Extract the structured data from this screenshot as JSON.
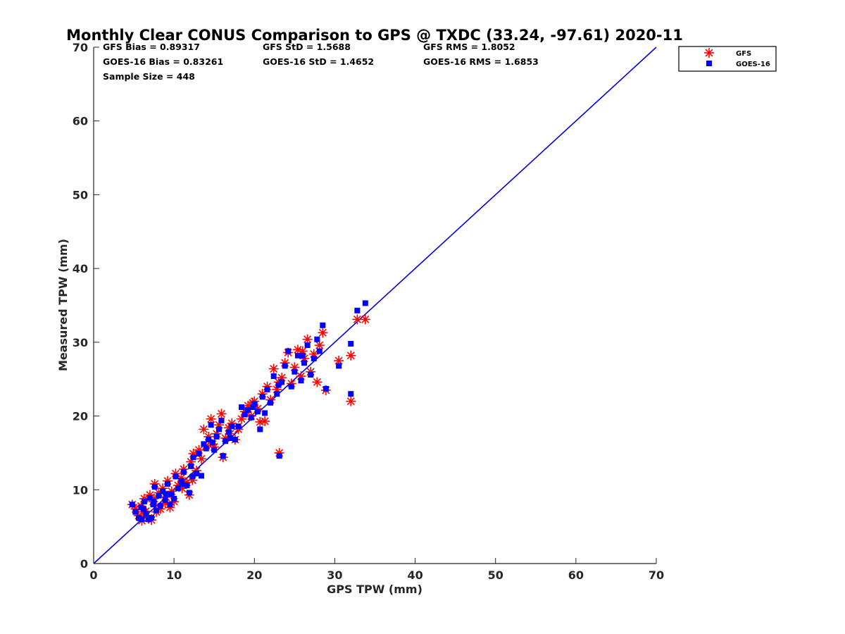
{
  "chart_data": {
    "type": "scatter",
    "title": "Monthly Clear CONUS Comparison to GPS @ TXDC (33.24, -97.61) 2020-11",
    "xlabel": "GPS TPW (mm)",
    "ylabel": "Measured TPW (mm)",
    "xlim": [
      0,
      70
    ],
    "ylim": [
      0,
      70
    ],
    "xticks": [
      0,
      10,
      20,
      30,
      40,
      50,
      60,
      70
    ],
    "yticks": [
      0,
      10,
      20,
      30,
      40,
      50,
      60,
      70
    ],
    "grid": false,
    "legend_position": "top-right-outside",
    "stats": {
      "gfs_bias": "GFS Bias = 0.89317",
      "gfs_std": "GFS StD = 1.5688",
      "gfs_rms": "GFS RMS = 1.8052",
      "goes_bias": "GOES-16 Bias = 0.83261",
      "goes_std": "GOES-16 StD = 1.4652",
      "goes_rms": "GOES-16 RMS = 1.6853",
      "sample_size": "Sample Size = 448"
    },
    "reference_line": {
      "name": "1:1",
      "color": "#0000dd",
      "points": [
        [
          0,
          0
        ],
        [
          70,
          70
        ]
      ]
    },
    "series": [
      {
        "name": "GFS",
        "marker": "asterisk",
        "color": "#ff0000",
        "points": [
          [
            4.8,
            8.0
          ],
          [
            5.2,
            7.4
          ],
          [
            5.6,
            6.5
          ],
          [
            5.9,
            7.8
          ],
          [
            6.0,
            5.8
          ],
          [
            6.3,
            8.8
          ],
          [
            6.5,
            7.1
          ],
          [
            6.8,
            6.2
          ],
          [
            7.0,
            9.3
          ],
          [
            7.2,
            5.9
          ],
          [
            7.4,
            8.4
          ],
          [
            7.6,
            10.8
          ],
          [
            7.8,
            7.0
          ],
          [
            8.1,
            9.6
          ],
          [
            8.3,
            7.4
          ],
          [
            8.6,
            10.2
          ],
          [
            8.9,
            8.2
          ],
          [
            9.2,
            11.2
          ],
          [
            9.5,
            7.6
          ],
          [
            9.7,
            9.8
          ],
          [
            10.0,
            8.4
          ],
          [
            10.2,
            12.2
          ],
          [
            10.5,
            10.6
          ],
          [
            10.9,
            11.6
          ],
          [
            11.2,
            12.8
          ],
          [
            11.6,
            11.0
          ],
          [
            11.9,
            9.3
          ],
          [
            12.1,
            13.8
          ],
          [
            12.4,
            14.9
          ],
          [
            12.8,
            12.6
          ],
          [
            13.1,
            15.4
          ],
          [
            13.4,
            14.2
          ],
          [
            13.7,
            18.2
          ],
          [
            14.0,
            16.0
          ],
          [
            14.3,
            17.2
          ],
          [
            14.6,
            19.6
          ],
          [
            15.0,
            15.8
          ],
          [
            15.3,
            17.6
          ],
          [
            15.6,
            18.8
          ],
          [
            15.9,
            20.3
          ],
          [
            16.1,
            14.4
          ],
          [
            16.4,
            17.0
          ],
          [
            16.8,
            18.4
          ],
          [
            17.2,
            19.0
          ],
          [
            17.6,
            16.8
          ],
          [
            18.0,
            18.2
          ],
          [
            18.4,
            19.6
          ],
          [
            18.8,
            20.6
          ],
          [
            19.2,
            21.4
          ],
          [
            19.6,
            20.0
          ],
          [
            20.0,
            22.0
          ],
          [
            20.4,
            21.0
          ],
          [
            20.7,
            19.2
          ],
          [
            21.0,
            23.0
          ],
          [
            21.3,
            19.3
          ],
          [
            21.6,
            24.0
          ],
          [
            22.0,
            22.2
          ],
          [
            22.4,
            26.4
          ],
          [
            22.8,
            23.6
          ],
          [
            23.1,
            15.0
          ],
          [
            23.4,
            25.2
          ],
          [
            23.8,
            27.2
          ],
          [
            24.2,
            28.6
          ],
          [
            24.6,
            24.4
          ],
          [
            25.0,
            26.6
          ],
          [
            25.4,
            29.0
          ],
          [
            25.8,
            25.4
          ],
          [
            26.2,
            27.8
          ],
          [
            26.6,
            30.4
          ],
          [
            27.0,
            26.0
          ],
          [
            27.4,
            28.4
          ],
          [
            27.8,
            24.6
          ],
          [
            28.1,
            29.6
          ],
          [
            28.5,
            31.3
          ],
          [
            28.9,
            23.5
          ],
          [
            30.5,
            27.5
          ],
          [
            32.0,
            28.2
          ],
          [
            32.0,
            22.0
          ],
          [
            32.8,
            33.1
          ],
          [
            33.8,
            33.1
          ],
          [
            6.2,
            7.0
          ],
          [
            7.5,
            8.8
          ],
          [
            9.0,
            9.0
          ],
          [
            11.0,
            10.2
          ],
          [
            12.3,
            11.3
          ],
          [
            14.8,
            16.2
          ],
          [
            17.0,
            17.6
          ],
          [
            19.8,
            21.8
          ],
          [
            23.0,
            24.6
          ],
          [
            26.0,
            28.8
          ]
        ]
      },
      {
        "name": "GOES-16",
        "marker": "square",
        "color": "#0000ff",
        "points": [
          [
            4.8,
            8.0
          ],
          [
            5.2,
            7.0
          ],
          [
            5.6,
            6.2
          ],
          [
            5.9,
            7.6
          ],
          [
            6.0,
            6.0
          ],
          [
            6.3,
            8.4
          ],
          [
            6.5,
            6.8
          ],
          [
            6.8,
            6.0
          ],
          [
            7.0,
            8.9
          ],
          [
            7.2,
            6.2
          ],
          [
            7.4,
            8.0
          ],
          [
            7.6,
            10.4
          ],
          [
            7.8,
            7.2
          ],
          [
            8.1,
            9.2
          ],
          [
            8.3,
            7.8
          ],
          [
            8.6,
            9.8
          ],
          [
            8.9,
            8.6
          ],
          [
            9.2,
            10.8
          ],
          [
            9.5,
            8.0
          ],
          [
            9.7,
            9.4
          ],
          [
            10.0,
            8.8
          ],
          [
            10.2,
            11.8
          ],
          [
            10.5,
            10.2
          ],
          [
            10.9,
            11.2
          ],
          [
            11.2,
            12.4
          ],
          [
            11.6,
            10.6
          ],
          [
            11.9,
            9.6
          ],
          [
            12.1,
            13.2
          ],
          [
            12.4,
            14.4
          ],
          [
            12.8,
            12.2
          ],
          [
            13.1,
            14.9
          ],
          [
            13.4,
            11.9
          ],
          [
            13.7,
            16.2
          ],
          [
            14.0,
            15.6
          ],
          [
            14.3,
            16.8
          ],
          [
            14.6,
            18.8
          ],
          [
            15.0,
            15.4
          ],
          [
            15.3,
            17.2
          ],
          [
            15.6,
            18.2
          ],
          [
            15.9,
            19.4
          ],
          [
            16.1,
            14.6
          ],
          [
            16.4,
            16.6
          ],
          [
            16.8,
            17.8
          ],
          [
            17.2,
            18.6
          ],
          [
            17.6,
            16.8
          ],
          [
            18.0,
            18.6
          ],
          [
            18.4,
            21.2
          ],
          [
            18.8,
            20.2
          ],
          [
            19.2,
            20.8
          ],
          [
            19.6,
            19.8
          ],
          [
            20.0,
            21.6
          ],
          [
            20.4,
            20.6
          ],
          [
            20.7,
            18.2
          ],
          [
            21.0,
            22.6
          ],
          [
            21.3,
            20.4
          ],
          [
            21.6,
            23.6
          ],
          [
            22.0,
            21.8
          ],
          [
            22.4,
            25.4
          ],
          [
            22.8,
            23.0
          ],
          [
            23.1,
            14.6
          ],
          [
            23.4,
            24.6
          ],
          [
            23.8,
            26.8
          ],
          [
            24.2,
            28.8
          ],
          [
            24.6,
            24.0
          ],
          [
            25.0,
            26.0
          ],
          [
            25.4,
            28.2
          ],
          [
            25.8,
            24.8
          ],
          [
            26.2,
            27.2
          ],
          [
            26.6,
            29.6
          ],
          [
            27.0,
            25.6
          ],
          [
            27.4,
            27.8
          ],
          [
            27.8,
            30.4
          ],
          [
            28.1,
            28.8
          ],
          [
            28.5,
            32.3
          ],
          [
            28.9,
            23.7
          ],
          [
            30.5,
            26.8
          ],
          [
            32.0,
            29.8
          ],
          [
            32.0,
            23.0
          ],
          [
            32.8,
            34.3
          ],
          [
            33.8,
            35.3
          ],
          [
            6.2,
            7.4
          ],
          [
            7.5,
            8.4
          ],
          [
            9.0,
            9.4
          ],
          [
            11.0,
            10.8
          ],
          [
            12.3,
            11.8
          ],
          [
            14.8,
            16.4
          ],
          [
            17.0,
            17.0
          ],
          [
            19.8,
            21.2
          ],
          [
            23.0,
            24.2
          ],
          [
            26.0,
            28.2
          ]
        ]
      }
    ]
  }
}
